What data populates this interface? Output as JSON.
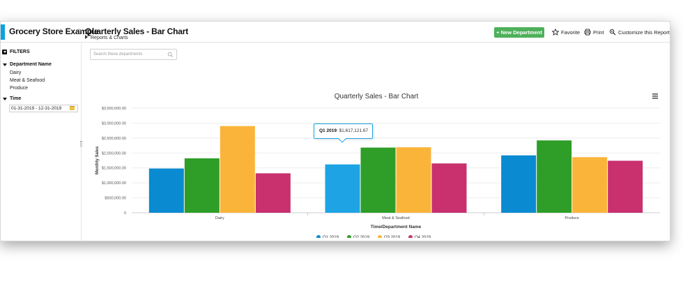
{
  "header": {
    "app_title": "Grocery Store Example",
    "separator": ">",
    "report_title": "Quarterly Sales - Bar Chart",
    "breadcrumb_sub": "Reports & Charts",
    "new_button": "+ New Department",
    "favorite": "Favorite",
    "print": "Print",
    "customize": "Customize this Report"
  },
  "sidebar": {
    "filters_label": "FILTERS",
    "dept_group": "Department Name",
    "dept_options": [
      "Dairy",
      "Meat & Seafood",
      "Produce"
    ],
    "time_group": "Time",
    "date_range": "01-31-2019 - 12-31-2019"
  },
  "search": {
    "placeholder": "Search these departments"
  },
  "tooltip": {
    "label": "Q1 2019",
    "value": ": $1,617,121.67"
  },
  "colors": {
    "q1": "#0a8ad0",
    "q1_hover": "#1ea4e4",
    "q2": "#2e9e28",
    "q3": "#fbb43a",
    "q4": "#c8306e",
    "accent": "#0aa3e0",
    "new_button": "#4db05a"
  },
  "chart_data": {
    "type": "bar",
    "title": "Quarterly Sales - Bar Chart",
    "xlabel": "Time/Department Name",
    "ylabel": "Monthly Sales",
    "categories": [
      "Dairy",
      "Meat & Seafood",
      "Produce"
    ],
    "series": [
      {
        "name": "Q1 2019",
        "values": [
          1480000,
          1617121.67,
          1920000
        ]
      },
      {
        "name": "Q2 2019",
        "values": [
          1820000,
          2180000,
          2420000
        ]
      },
      {
        "name": "Q3 2019",
        "values": [
          2900000,
          2190000,
          1860000
        ]
      },
      {
        "name": "Q4 2019",
        "values": [
          1320000,
          1650000,
          1740000
        ]
      }
    ],
    "ylim": [
      0,
      3500000
    ],
    "yticks": [
      0,
      500000,
      1000000,
      1500000,
      2000000,
      2500000,
      3000000,
      3500000
    ],
    "ytick_labels": [
      "0",
      "$500,000.00",
      "$1,000,000.00",
      "$1,500,000.00",
      "$2,000,000.00",
      "$2,500,000.00",
      "$3,000,000.00",
      "$3,500,000.00"
    ],
    "grid": true,
    "legend": "bottom"
  }
}
